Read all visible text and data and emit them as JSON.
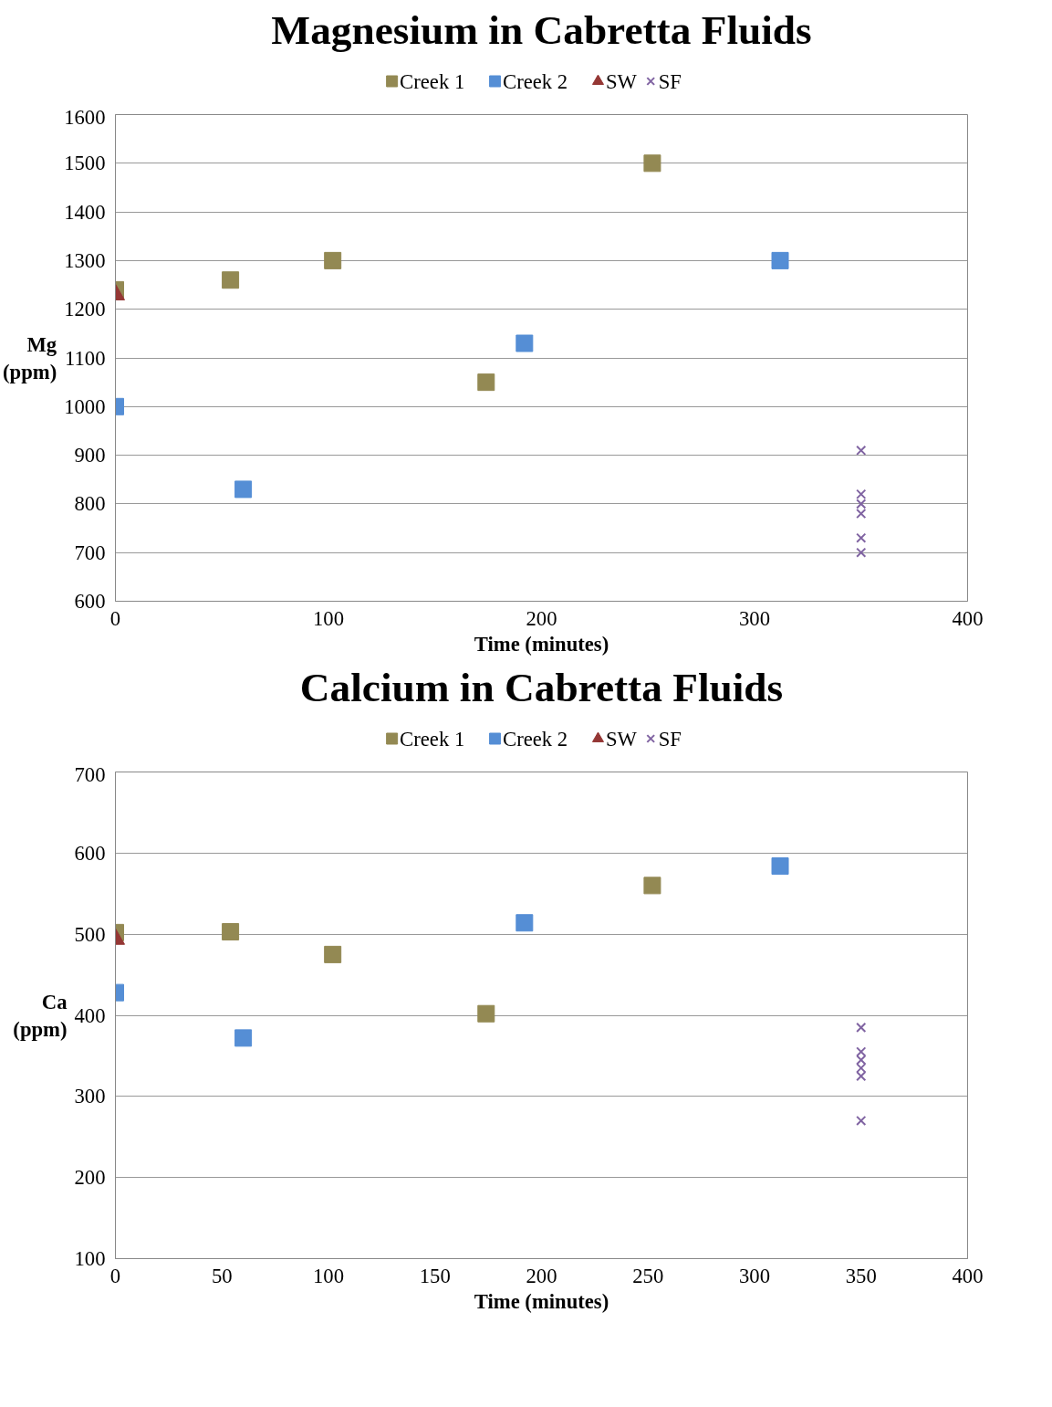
{
  "chart_data": [
    {
      "type": "scatter",
      "title": "Magnesium in Cabretta Fluids",
      "xlabel": "Time (minutes)",
      "ylabel": "Mg (ppm)",
      "xlim": [
        0,
        400
      ],
      "xticks": [
        0,
        100,
        200,
        300,
        400
      ],
      "ylim": [
        600,
        1600
      ],
      "yticks": [
        600,
        700,
        800,
        900,
        1000,
        1100,
        1200,
        1300,
        1400,
        1500,
        1600
      ],
      "grid": "y",
      "legend": "top",
      "series": [
        {
          "name": "Creek 1",
          "color": "#938953",
          "marker": "square",
          "x": [
            0,
            54,
            102,
            174,
            252
          ],
          "values": [
            1240,
            1260,
            1300,
            1050,
            1500
          ]
        },
        {
          "name": "Creek 2",
          "color": "#558ed5",
          "marker": "square",
          "x": [
            0,
            60,
            192,
            312
          ],
          "values": [
            1000,
            830,
            1130,
            1300
          ]
        },
        {
          "name": "SW",
          "color": "#953735",
          "marker": "triangle",
          "x": [
            0
          ],
          "values": [
            1230
          ]
        },
        {
          "name": "SF",
          "color": "#8064a2",
          "marker": "cross",
          "x": [
            350,
            350,
            350,
            350,
            350,
            350
          ],
          "values": [
            910,
            820,
            800,
            780,
            730,
            700
          ]
        }
      ]
    },
    {
      "type": "scatter",
      "title": "Calcium in Cabretta Fluids",
      "xlabel": "Time (minutes)",
      "ylabel": "Ca (ppm)",
      "xlim": [
        0,
        400
      ],
      "xticks": [
        0,
        50,
        100,
        150,
        200,
        250,
        300,
        350,
        400
      ],
      "ylim": [
        100,
        700
      ],
      "yticks": [
        100,
        200,
        300,
        400,
        500,
        600,
        700
      ],
      "grid": "y",
      "legend": "top",
      "series": [
        {
          "name": "Creek 1",
          "color": "#938953",
          "marker": "square",
          "x": [
            0,
            54,
            102,
            174,
            252
          ],
          "values": [
            502,
            503,
            475,
            402,
            560
          ]
        },
        {
          "name": "Creek 2",
          "color": "#558ed5",
          "marker": "square",
          "x": [
            0,
            60,
            192,
            312
          ],
          "values": [
            428,
            372,
            514,
            584
          ]
        },
        {
          "name": "SW",
          "color": "#953735",
          "marker": "triangle",
          "x": [
            0
          ],
          "values": [
            494
          ]
        },
        {
          "name": "SF",
          "color": "#8064a2",
          "marker": "cross",
          "x": [
            350,
            350,
            350,
            350,
            350,
            350
          ],
          "values": [
            385,
            355,
            345,
            335,
            325,
            270
          ]
        }
      ]
    }
  ]
}
